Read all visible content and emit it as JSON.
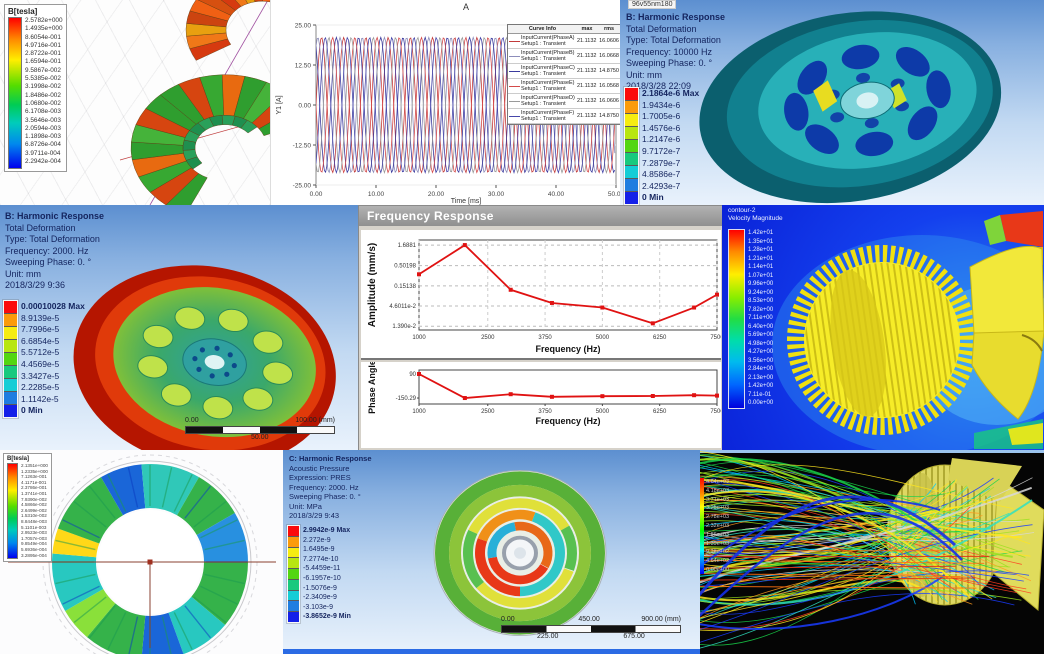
{
  "colors": {
    "ansys_colorbar": [
      "#fb0b0b",
      "#fb9b0b",
      "#f6ec11",
      "#b8e611",
      "#53d611",
      "#18c97e",
      "#15cdd6",
      "#1f7de0",
      "#1420e8"
    ],
    "pathline_palette": [
      "#1a3cff",
      "#00c8ff",
      "#19d24a",
      "#19d24a",
      "#9ae01e",
      "#9ae01e",
      "#ffe61e",
      "#ffe61e",
      "#ff9a1e",
      "#ff3c1e",
      "#d8d8d8",
      "#2fe0c0"
    ]
  },
  "panels": {
    "maxwell_stator": {
      "legend_title": "B[tesla]",
      "legend_values": [
        "2.5782e+000",
        "1.4935e+000",
        "8.6054e-001",
        "4.9716e-001",
        "2.8722e-001",
        "1.6594e-001",
        "9.5867e-002",
        "5.5385e-002",
        "3.1998e-002",
        "1.8486e-002",
        "1.0680e-002",
        "6.1708e-003",
        "3.5646e-003",
        "2.0594e-003",
        "1.1898e-003",
        "6.8726e-004",
        "3.9711e-004",
        "2.2942e-004"
      ]
    },
    "harmonic_10000": {
      "info_lines": [
        "B: Harmonic Response",
        "Total Deformation",
        "Type: Total Deformation",
        "Frequency: 10000 Hz",
        "Sweeping Phase: 0. °",
        "Unit: mm",
        "2018/3/28 22:09"
      ],
      "legend_values": [
        "2.1864e-6 Max",
        "1.9434e-6",
        "1.7005e-6",
        "1.4576e-6",
        "1.2147e-6",
        "9.7172e-7",
        "7.2879e-7",
        "4.8586e-7",
        "2.4293e-7",
        "0 Min"
      ],
      "corner_tag": "96v55nm180"
    },
    "harmonic_2000": {
      "info_lines": [
        "B: Harmonic Response",
        "Total Deformation",
        "Type: Total Deformation",
        "Frequency: 2000. Hz",
        "Sweeping Phase: 0. °",
        "Unit: mm",
        "2018/3/29 9:36"
      ],
      "legend_values": [
        "0.00010028 Max",
        "8.9139e-5",
        "7.7996e-5",
        "6.6854e-5",
        "5.5712e-5",
        "4.4569e-5",
        "3.3427e-5",
        "2.2285e-5",
        "1.1142e-5",
        "0 Min"
      ],
      "scale": {
        "left": "0.00",
        "right": "100.00 (mm)",
        "mid": "50.00"
      }
    },
    "freq_response": {
      "window_title": "Frequency Response"
    },
    "velocity_contour": {
      "legend_header": [
        "contour-2",
        "Velocity Magnitude"
      ],
      "legend_values": [
        "1.42e+01",
        "1.35e+01",
        "1.28e+01",
        "1.21e+01",
        "1.14e+01",
        "1.07e+01",
        "9.96e+00",
        "9.24e+00",
        "8.53e+00",
        "7.82e+00",
        "7.11e+00",
        "6.40e+00",
        "5.69e+00",
        "4.98e+00",
        "4.27e+00",
        "3.56e+00",
        "2.84e+00",
        "2.13e+00",
        "1.42e+00",
        "7.11e-01",
        "0.00e+00"
      ]
    },
    "maxwell_ring": {
      "legend_title": "B[tesla]",
      "legend_values": [
        "2.1351e+000",
        "1.2335e+000",
        "7.1263e-001",
        "4.1171e-001",
        "2.3786e-001",
        "1.3741e-001",
        "7.9390e-002",
        "4.5866e-002",
        "2.6499e-002",
        "1.5310e-002",
        "8.8448e-003",
        "5.1101e-003",
        "2.9523e-003",
        "1.7057e-003",
        "9.8549e-004",
        "5.6936e-004",
        "3.2895e-004"
      ]
    },
    "acoustic": {
      "info_lines": [
        "C: Harmonic Response",
        "Acoustic Pressure",
        "Expression: PRES",
        "Frequency: 2000. Hz",
        "Sweeping Phase: 0. °",
        "Unit: MPa",
        "2018/3/29 9:43"
      ],
      "legend_values": [
        "2.9942e-9 Max",
        "2.272e-9",
        "1.6495e-9",
        "7.2774e-10",
        "-5.4459e-11",
        "-6.1957e-10",
        "-1.5076e-9",
        "-2.3409e-9",
        "-3.103e-9",
        "-3.8652e-9 Min"
      ],
      "scale": {
        "left": "0.00",
        "mid_top": "450.00",
        "right": "900.00 (mm)",
        "mid1": "225.00",
        "mid2": "675.00"
      }
    },
    "pathlines": {
      "legend_values": [
        "4.64e+03",
        "4.18e+03",
        "3.71e+03",
        "3.25e+03",
        "2.78e+03",
        "2.32e+03",
        "1.86e+03",
        "1.39e+03",
        "9.28e+02",
        "4.64e+02",
        "0.00e+00"
      ]
    }
  },
  "chart_data": [
    {
      "type": "line",
      "title": "A",
      "corner_tag": "96v55nm180",
      "xlabel": "Time [ms]",
      "ylabel": "Y1 [A]",
      "xlim": [
        0,
        50
      ],
      "ylim": [
        -25,
        25
      ],
      "xticks": [
        "0.00",
        "10.00",
        "20.00",
        "30.00",
        "40.00",
        "50.00"
      ],
      "yticks": [
        "25.00",
        "12.50",
        "0.00",
        "-12.50",
        "-25.00"
      ],
      "waveform": {
        "amplitude": 21.1132,
        "period_ms": 3.7,
        "phase_step_deg": 60
      },
      "legend_header": [
        "Curve Info",
        "max",
        "rms"
      ],
      "series": [
        {
          "name": "InputCurrent(PhaseA)",
          "setup": "Setup1 : Transient",
          "max": "21.1132",
          "rms": "16.0606",
          "color": "#c23b3b"
        },
        {
          "name": "InputCurrent(PhaseB)",
          "setup": "Setup1 : Transient",
          "max": "21.1132",
          "rms": "16.0668",
          "color": "#8d8dbb"
        },
        {
          "name": "InputCurrent(PhaseC)",
          "setup": "Setup1 : Transient",
          "max": "21.1132",
          "rms": "14.8750",
          "color": "#3b3b9e"
        },
        {
          "name": "InputCurrent(PhaseE)",
          "setup": "Setup1 : Transient",
          "max": "21.1132",
          "rms": "16.0568",
          "color": "#d44a4a"
        },
        {
          "name": "InputCurrent(PhaseD)",
          "setup": "Setup1 : Transient",
          "max": "21.1132",
          "rms": "16.0606",
          "color": "#9a9a9a"
        },
        {
          "name": "InputCurrent(PhaseF)",
          "setup": "Setup1 : Transient",
          "max": "21.1132",
          "rms": "14.8750",
          "color": "#4646aa"
        }
      ]
    },
    {
      "type": "line",
      "name": "amplitude",
      "title": "Frequency Response - Amplitude",
      "ylabel": "Amplitude (mm/s)",
      "xlabel": "Frequency (Hz)",
      "yscale": "log",
      "x": [
        1000,
        2000,
        3000,
        3900,
        5000,
        6100,
        7000,
        7500
      ],
      "y": [
        0.3,
        1.6881,
        0.12,
        0.055,
        0.042,
        0.0165,
        0.042,
        0.09
      ],
      "ytick_labels": [
        "1.6881",
        "0.50198",
        "0.15138",
        "4.6011e-2",
        "1.390e-2"
      ],
      "ytick_values": [
        1.6881,
        0.50198,
        0.15138,
        0.046011,
        0.0139
      ],
      "xticks": [
        1000,
        2500,
        3750,
        5000,
        6250,
        7500
      ],
      "line_color": "#e01212",
      "grid": true,
      "legend_position": "none"
    },
    {
      "type": "line",
      "name": "phase",
      "title": "Frequency Response - Phase",
      "ylabel": "Phase Angle",
      "xlabel": "Frequency (Hz)",
      "x": [
        1000,
        2000,
        3000,
        3900,
        5000,
        6100,
        7000,
        7500
      ],
      "y": [
        90,
        -150.29,
        -112,
        -138,
        -132,
        -130,
        -122,
        -126
      ],
      "ytick_labels": [
        "90",
        "-150.29"
      ],
      "ytick_values": [
        90,
        -150.29
      ],
      "ylim": [
        -210,
        130
      ],
      "xticks": [
        1000,
        2500,
        3750,
        5000,
        6250,
        7500
      ],
      "line_color": "#e01212",
      "grid": false,
      "legend_position": "none"
    }
  ]
}
